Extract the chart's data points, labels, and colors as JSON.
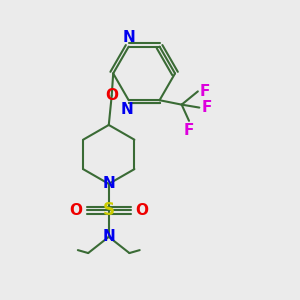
{
  "background_color": "#ebebeb",
  "bond_color": "#3a6b35",
  "bond_width": 1.5,
  "N_color": "#0000ee",
  "O_color": "#ee0000",
  "S_color": "#cccc00",
  "F_color": "#dd00dd",
  "text_fontsize": 11,
  "figsize": [
    3.0,
    3.0
  ],
  "dpi": 100,
  "xlim": [
    0,
    10
  ],
  "ylim": [
    0,
    10
  ]
}
